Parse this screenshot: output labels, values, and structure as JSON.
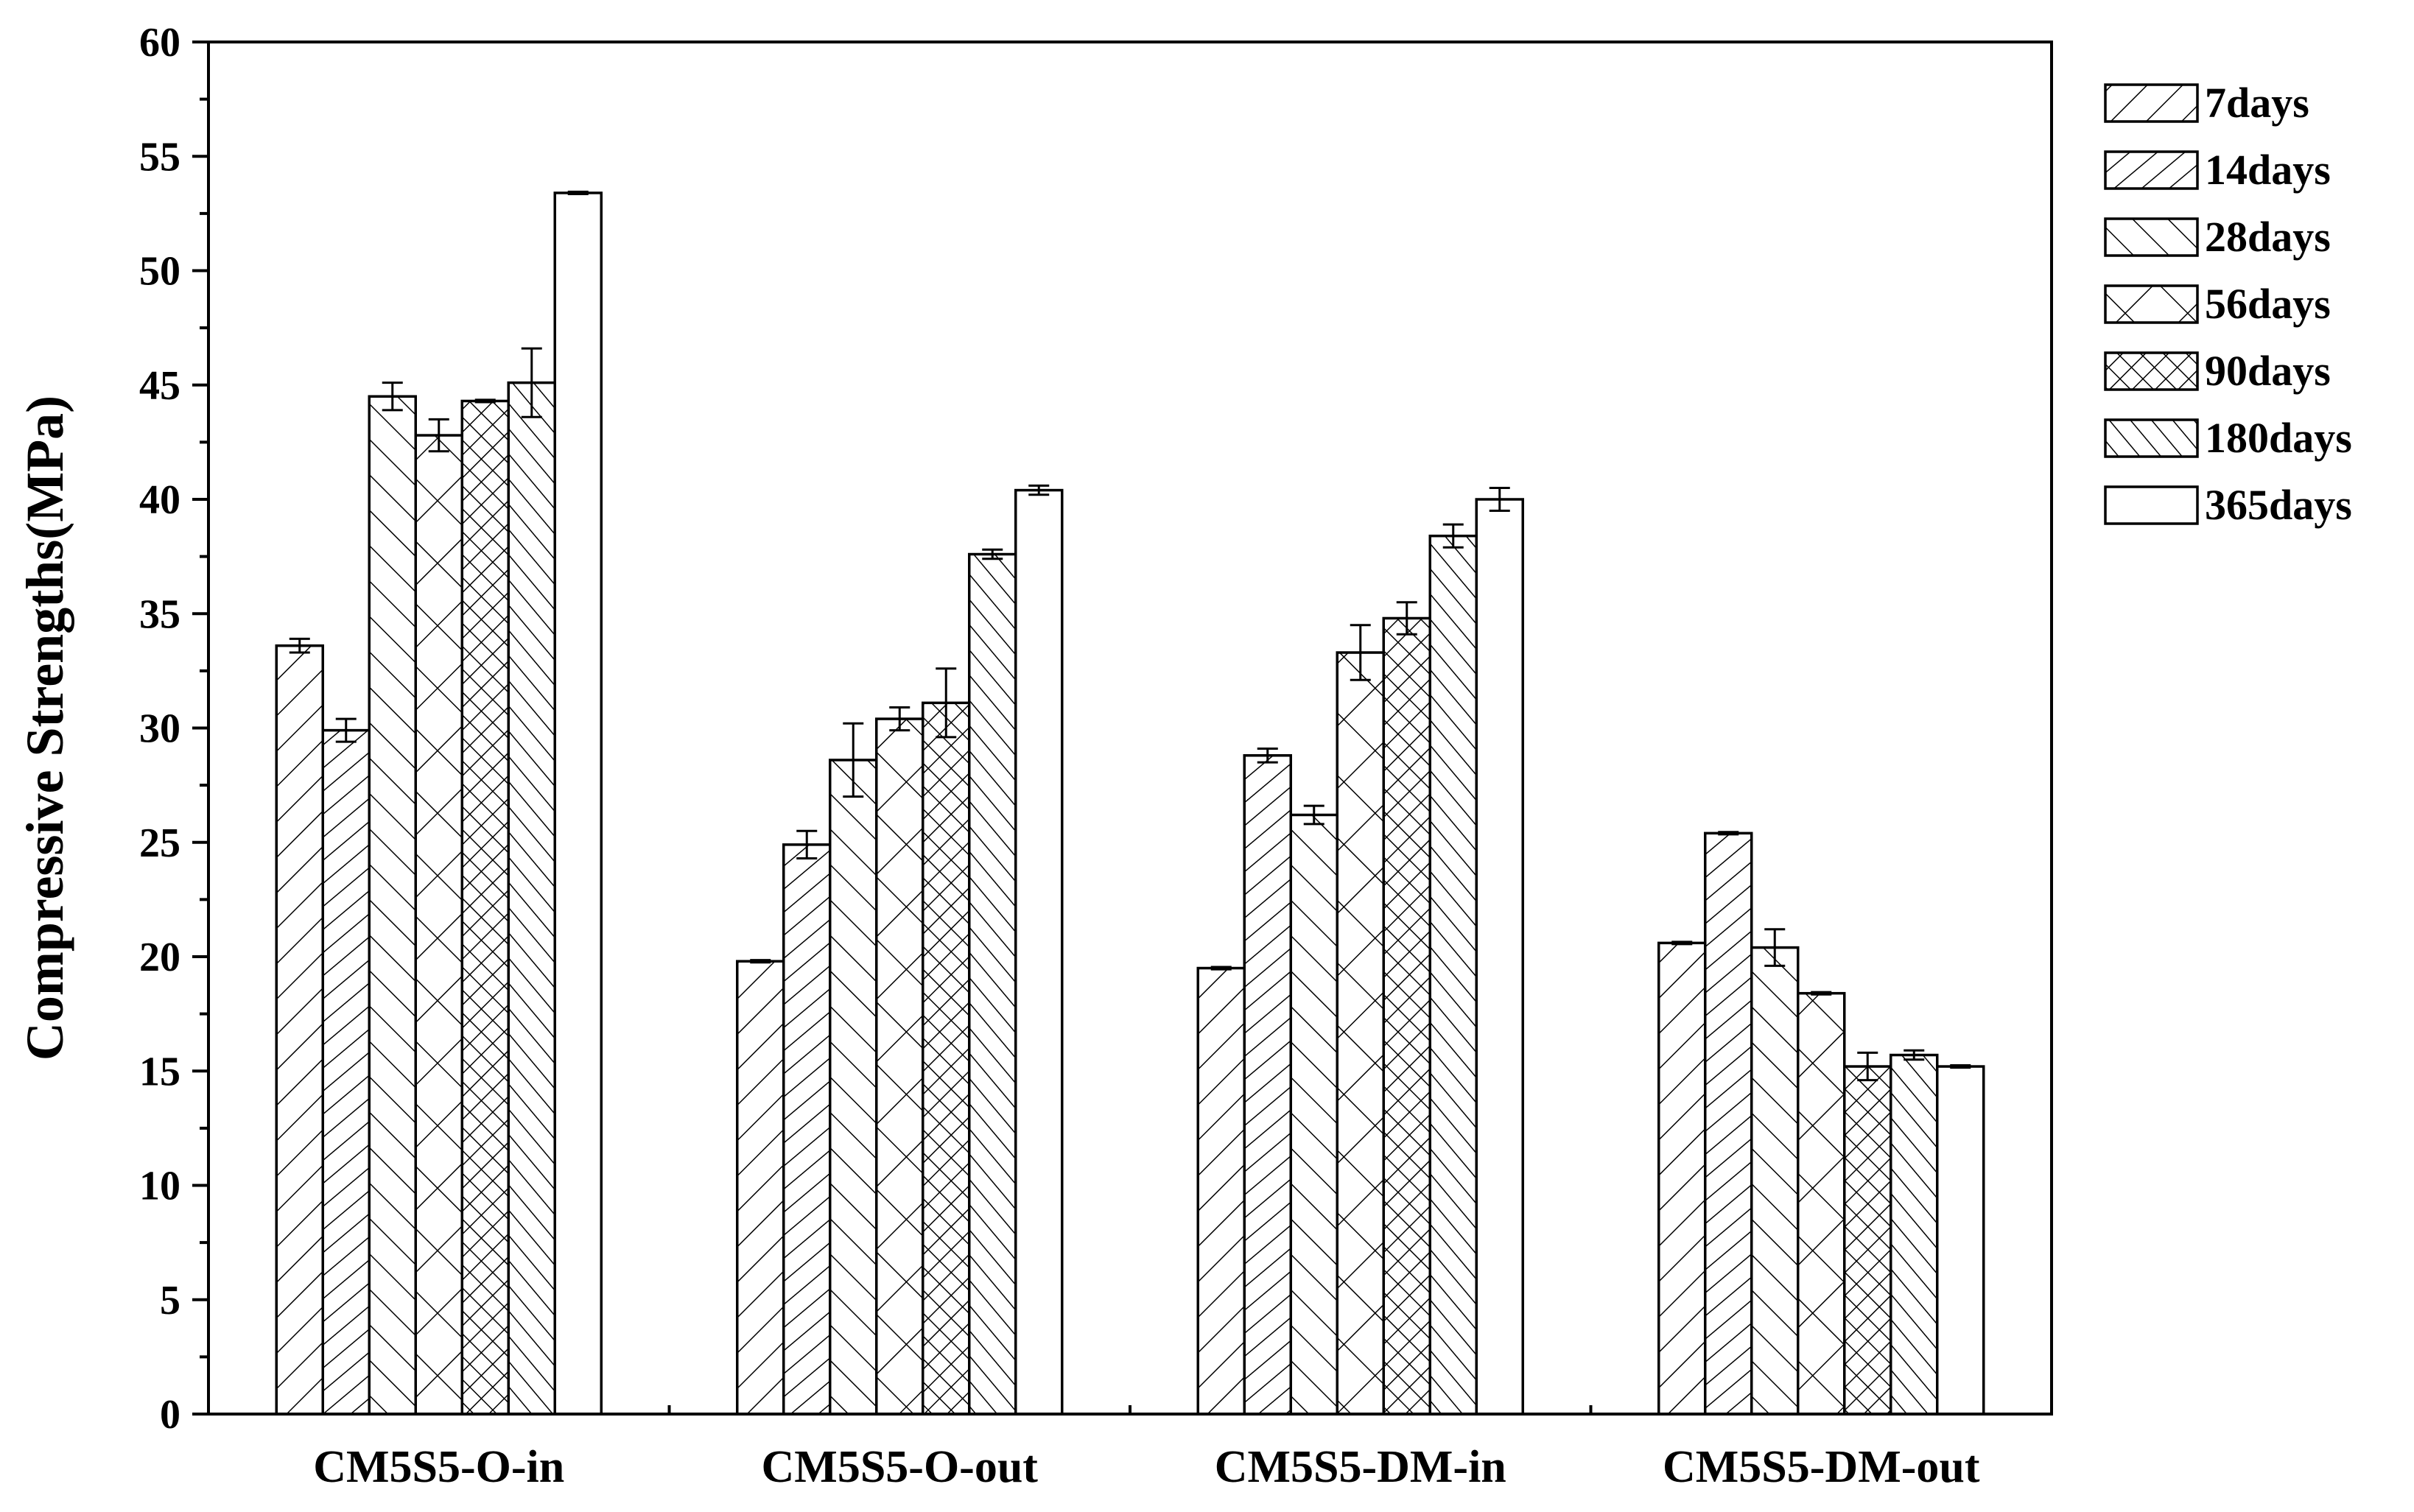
{
  "chart_data": {
    "type": "bar",
    "title": "",
    "xlabel": "",
    "ylabel": "Compressive Strengths(MPa)",
    "ylim": [
      0,
      60
    ],
    "yticks": [
      0,
      5,
      10,
      15,
      20,
      25,
      30,
      35,
      40,
      45,
      50,
      55,
      60
    ],
    "grid": false,
    "legend_position": "right",
    "categories": [
      "CM5S5-O-in",
      "CM5S5-O-out",
      "CM5S5-DM-in",
      "CM5S5-DM-out"
    ],
    "series": [
      {
        "name": "7days",
        "pattern": "diag-right",
        "values": [
          33.6,
          19.8,
          19.5,
          20.6
        ],
        "errors": [
          0.3,
          0.05,
          0.05,
          0.05
        ]
      },
      {
        "name": "14days",
        "pattern": "diag-right-dense",
        "values": [
          29.9,
          24.9,
          28.8,
          25.4
        ],
        "errors": [
          0.5,
          0.6,
          0.3,
          0.05
        ]
      },
      {
        "name": "28days",
        "pattern": "diag-left",
        "values": [
          44.5,
          28.6,
          26.2,
          20.4
        ],
        "errors": [
          0.6,
          1.6,
          0.4,
          0.8
        ]
      },
      {
        "name": "56days",
        "pattern": "cross",
        "values": [
          42.8,
          30.4,
          33.3,
          18.4
        ],
        "errors": [
          0.7,
          0.5,
          1.2,
          0.05
        ]
      },
      {
        "name": "90days",
        "pattern": "cross-dense",
        "values": [
          44.3,
          31.1,
          34.8,
          15.2
        ],
        "errors": [
          0.05,
          1.5,
          0.7,
          0.6
        ]
      },
      {
        "name": "180days",
        "pattern": "diag-left-dense",
        "values": [
          45.1,
          37.6,
          38.4,
          15.7
        ],
        "errors": [
          1.5,
          0.2,
          0.5,
          0.2
        ]
      },
      {
        "name": "365days",
        "pattern": "none",
        "values": [
          53.4,
          40.4,
          40.0,
          15.2
        ],
        "errors": [
          0.05,
          0.2,
          0.5,
          0.05
        ]
      }
    ]
  }
}
